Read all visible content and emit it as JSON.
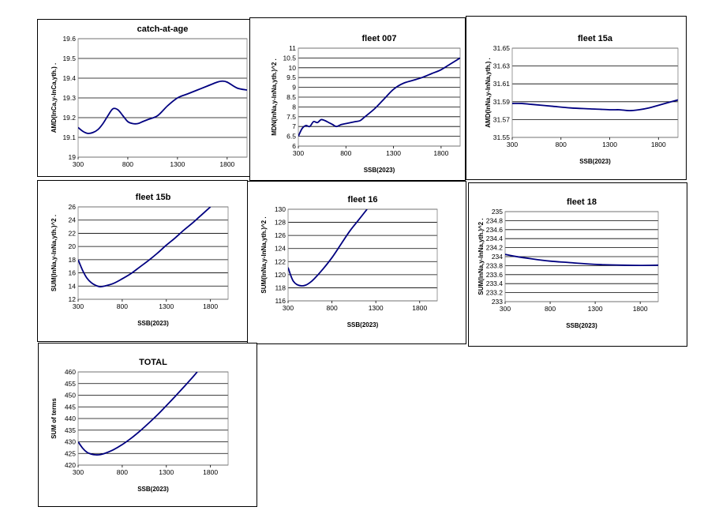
{
  "chart_data": [
    {
      "type": "line",
      "title": "catch-at-age",
      "xlabel": "SSB(2023)",
      "ylabel": "AMD(lnCa,y-lnCa,yth.) .",
      "xlim": [
        300,
        2000
      ],
      "ylim": [
        19,
        19.6
      ],
      "xticks": [
        300,
        800,
        1300,
        1800
      ],
      "yticks": [
        "19",
        "19.1",
        "19.2",
        "19.3",
        "19.4",
        "19.5",
        "19.6"
      ],
      "grid": true,
      "series": [
        {
          "x": [
            300,
            350,
            400,
            450,
            500,
            550,
            600,
            650,
            700,
            750,
            800,
            850,
            900,
            950,
            1000,
            1100,
            1200,
            1300,
            1400,
            1500,
            1600,
            1700,
            1750,
            1800,
            1900,
            2000
          ],
          "y": [
            19.15,
            19.13,
            19.12,
            19.125,
            19.14,
            19.17,
            19.21,
            19.245,
            19.24,
            19.21,
            19.18,
            19.17,
            19.17,
            19.18,
            19.19,
            19.21,
            19.26,
            19.3,
            19.32,
            19.34,
            19.36,
            19.38,
            19.385,
            19.38,
            19.35,
            19.34
          ]
        }
      ]
    },
    {
      "type": "line",
      "title": "fleet 007",
      "xlabel": "SSB(2023)",
      "ylabel": "MDN(lnNa,y-lnNa,yth.)^2 .",
      "xlim": [
        300,
        2000
      ],
      "ylim": [
        6,
        11
      ],
      "xticks": [
        300,
        800,
        1300,
        1800
      ],
      "yticks": [
        "6",
        "6.5",
        "7",
        "7.5",
        "8",
        "8.5",
        "9",
        "9.5",
        "10",
        "10.5",
        "11"
      ],
      "grid": true,
      "series": [
        {
          "x": [
            300,
            340,
            380,
            420,
            460,
            500,
            540,
            580,
            620,
            660,
            700,
            750,
            800,
            850,
            900,
            950,
            1000,
            1100,
            1200,
            1300,
            1400,
            1500,
            1600,
            1700,
            1800,
            1900,
            2000
          ],
          "y": [
            6.5,
            6.9,
            7.05,
            7.0,
            7.25,
            7.2,
            7.35,
            7.3,
            7.2,
            7.1,
            7.0,
            7.1,
            7.15,
            7.2,
            7.25,
            7.3,
            7.5,
            7.9,
            8.4,
            8.9,
            9.2,
            9.35,
            9.5,
            9.7,
            9.9,
            10.2,
            10.5
          ]
        }
      ]
    },
    {
      "type": "line",
      "title": "fleet 15a",
      "xlabel": "SSB(2023)",
      "ylabel": "AMD(lnNa,y-lnNa,yth.) .",
      "xlim": [
        300,
        2000
      ],
      "ylim": [
        31.55,
        31.65
      ],
      "xticks": [
        300,
        800,
        1300,
        1800
      ],
      "yticks": [
        "31.55",
        "31.57",
        "31.59",
        "31.61",
        "31.63",
        "31.65"
      ],
      "grid": true,
      "series": [
        {
          "x": [
            300,
            400,
            500,
            700,
            900,
            1100,
            1300,
            1400,
            1500,
            1600,
            1700,
            1800,
            1900,
            2000
          ],
          "y": [
            31.588,
            31.588,
            31.587,
            31.585,
            31.583,
            31.582,
            31.581,
            31.581,
            31.58,
            31.581,
            31.583,
            31.586,
            31.589,
            31.592
          ]
        }
      ]
    },
    {
      "type": "line",
      "title": "fleet 15b",
      "xlabel": "SSB(2023)",
      "ylabel": "SUM(lnNa,y-lnNa,yth.)^2 .",
      "xlim": [
        300,
        2000
      ],
      "ylim": [
        12,
        26
      ],
      "xticks": [
        300,
        800,
        1300,
        1800
      ],
      "yticks": [
        "12",
        "14",
        "16",
        "18",
        "20",
        "22",
        "24",
        "26"
      ],
      "grid": true,
      "series": [
        {
          "x": [
            300,
            350,
            400,
            450,
            500,
            550,
            600,
            700,
            800,
            900,
            1000,
            1100,
            1200,
            1300,
            1400,
            1500,
            1600,
            1700,
            1800
          ],
          "y": [
            18,
            16.4,
            15.2,
            14.5,
            14.1,
            13.9,
            14.0,
            14.4,
            15.1,
            15.9,
            16.9,
            17.9,
            19.0,
            20.2,
            21.3,
            22.5,
            23.6,
            24.8,
            26
          ]
        }
      ]
    },
    {
      "type": "line",
      "title": "fleet 16",
      "xlabel": "SSB(2023)",
      "ylabel": "SUM(lnNa,y-lnNa,yth.)^2 .",
      "xlim": [
        300,
        2000
      ],
      "ylim": [
        116,
        130
      ],
      "xticks": [
        300,
        800,
        1300,
        1800
      ],
      "yticks": [
        "116",
        "118",
        "120",
        "122",
        "124",
        "126",
        "128",
        "130"
      ],
      "grid": true,
      "series": [
        {
          "x": [
            300,
            330,
            360,
            400,
            450,
            500,
            550,
            600,
            700,
            800,
            900,
            1000,
            1100,
            1200
          ],
          "y": [
            121.1,
            119.9,
            119.0,
            118.5,
            118.3,
            118.4,
            118.8,
            119.4,
            120.9,
            122.6,
            124.6,
            126.6,
            128.3,
            130
          ]
        }
      ]
    },
    {
      "type": "line",
      "title": "fleet 18",
      "xlabel": "SSB(2023)",
      "ylabel": "SUM(lnNa,y-lnNa,yth.)^2 .",
      "xlim": [
        300,
        2000
      ],
      "ylim": [
        233,
        235
      ],
      "xticks": [
        300,
        800,
        1300,
        1800
      ],
      "yticks": [
        "233",
        "233.2",
        "233.4",
        "233.6",
        "233.8",
        "234",
        "234.2",
        "234.4",
        "234.6",
        "234.8",
        "235"
      ],
      "grid": true,
      "series": [
        {
          "x": [
            300,
            400,
            600,
            800,
            1000,
            1200,
            1400,
            1600,
            1800,
            2000
          ],
          "y": [
            234.05,
            234.01,
            233.95,
            233.9,
            233.87,
            233.84,
            233.82,
            233.81,
            233.805,
            233.81
          ]
        }
      ]
    },
    {
      "type": "line",
      "title": "TOTAL",
      "xlabel": "SSB(2023)",
      "ylabel": "SUM of terms",
      "xlim": [
        300,
        2000
      ],
      "ylim": [
        420,
        460
      ],
      "xticks": [
        300,
        800,
        1300,
        1800
      ],
      "yticks": [
        "420",
        "425",
        "430",
        "435",
        "440",
        "445",
        "450",
        "455",
        "460"
      ],
      "grid": true,
      "series": [
        {
          "x": [
            300,
            350,
            400,
            450,
            500,
            550,
            600,
            700,
            800,
            900,
            1000,
            1100,
            1200,
            1300,
            1400,
            1500,
            1600,
            1650
          ],
          "y": [
            430,
            427.3,
            425.5,
            424.7,
            424.4,
            424.5,
            425.0,
            426.6,
            428.8,
            431.5,
            434.6,
            438.0,
            441.6,
            445.5,
            449.5,
            453.6,
            457.8,
            460
          ]
        }
      ]
    }
  ]
}
